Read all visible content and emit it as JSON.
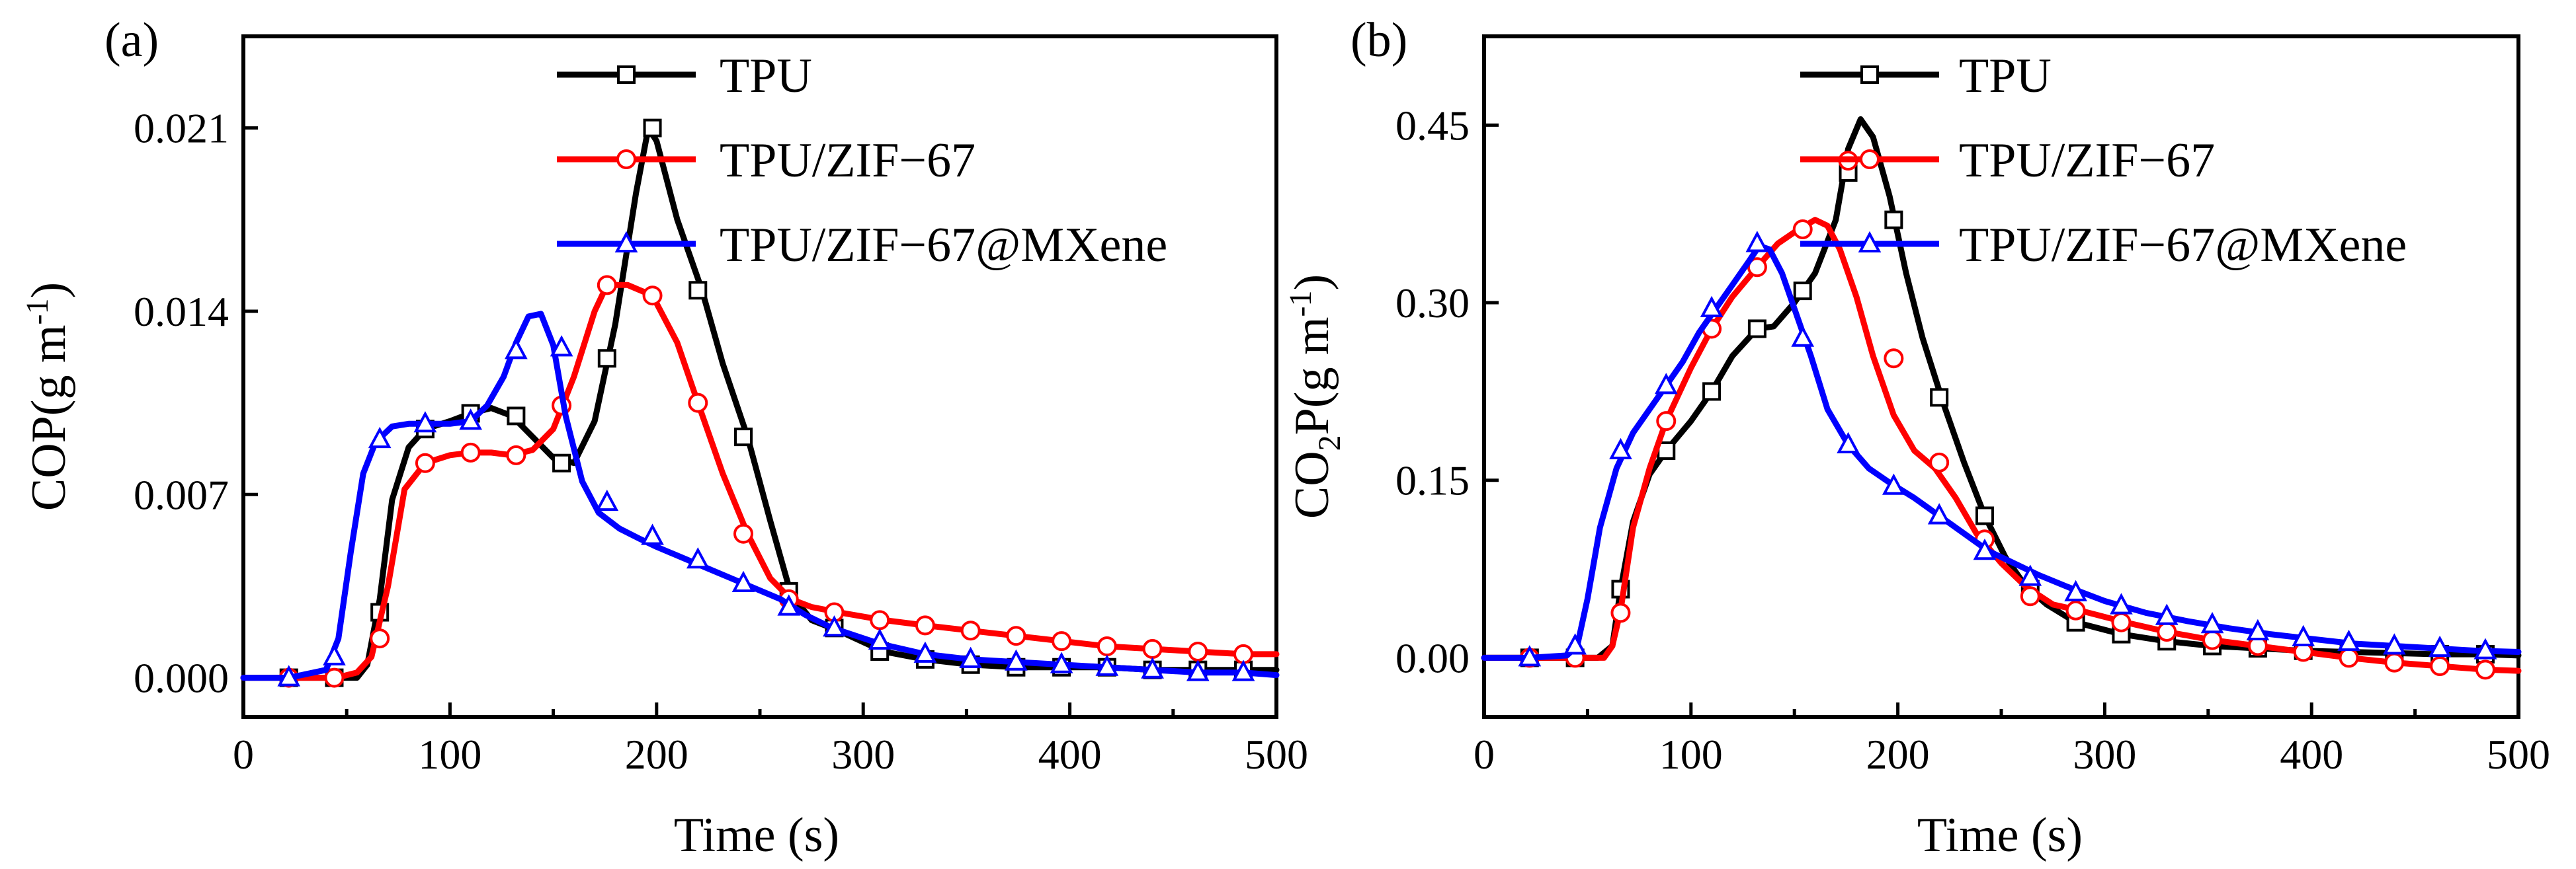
{
  "chart_data": [
    {
      "type": "line",
      "panel_label": "(a)",
      "title": "",
      "xlabel": "Time (s)",
      "ylabel": "COP(g m-1)",
      "ylabel_parts": {
        "base": "COP(g m",
        "sup": "-1",
        "tail": ")"
      },
      "xlim": [
        0,
        500
      ],
      "ylim": [
        -0.0015,
        0.0245
      ],
      "xticks": [
        "0",
        "100",
        "200",
        "300",
        "400",
        "500"
      ],
      "yticks": [
        "0.000",
        "0.007",
        "0.014",
        "0.021"
      ],
      "ytick_values": [
        0.0,
        0.007,
        0.014,
        0.021
      ],
      "grid": false,
      "legend_position": "top-right",
      "series": [
        {
          "name": "TPU",
          "color": "#000000",
          "marker": "square",
          "x": [
            0,
            22,
            45,
            55,
            60,
            66,
            72,
            80,
            88,
            100,
            110,
            120,
            130,
            140,
            150,
            160,
            170,
            180,
            190,
            196,
            200,
            210,
            222,
            232,
            244,
            255,
            265,
            275,
            288,
            310,
            330,
            352,
            374,
            396,
            418,
            440,
            462,
            484,
            500
          ],
          "y": [
            0.0,
            0.0,
            0.0,
            0.0,
            0.0005,
            0.003,
            0.0068,
            0.0088,
            0.0095,
            0.0098,
            0.0101,
            0.0103,
            0.01,
            0.0092,
            0.0084,
            0.0082,
            0.0098,
            0.0135,
            0.0185,
            0.021,
            0.0205,
            0.0175,
            0.0148,
            0.012,
            0.0092,
            0.006,
            0.0032,
            0.0022,
            0.0018,
            0.001,
            0.0007,
            0.0005,
            0.0004,
            0.0004,
            0.0004,
            0.0003,
            0.0003,
            0.0003,
            0.0003
          ],
          "markers_x": [
            22,
            44,
            66,
            88,
            110,
            132,
            154,
            176,
            198,
            220,
            242,
            264,
            286,
            308,
            330,
            352,
            374,
            396,
            418,
            440,
            462,
            484
          ],
          "markers_y": [
            0.0,
            0.0,
            0.0025,
            0.0095,
            0.0101,
            0.01,
            0.0082,
            0.0122,
            0.021,
            0.0148,
            0.0092,
            0.0033,
            0.0019,
            0.001,
            0.0007,
            0.0005,
            0.0004,
            0.0004,
            0.0004,
            0.0003,
            0.0003,
            0.0003
          ]
        },
        {
          "name": "TPU/ZIF−67",
          "color": "#ff0000",
          "marker": "circle",
          "x": [
            0,
            22,
            45,
            55,
            62,
            70,
            78,
            88,
            100,
            110,
            120,
            130,
            140,
            150,
            160,
            170,
            176,
            186,
            198,
            210,
            220,
            232,
            244,
            255,
            265,
            275,
            288,
            310,
            330,
            352,
            374,
            396,
            418,
            440,
            462,
            484,
            500
          ],
          "y": [
            0.0,
            0.0,
            0.0,
            0.0002,
            0.0008,
            0.0035,
            0.0072,
            0.0082,
            0.0085,
            0.0086,
            0.0086,
            0.0085,
            0.0087,
            0.0095,
            0.0115,
            0.014,
            0.015,
            0.015,
            0.0146,
            0.0128,
            0.0105,
            0.0078,
            0.0055,
            0.0038,
            0.003,
            0.0027,
            0.0025,
            0.0022,
            0.002,
            0.0018,
            0.0016,
            0.0014,
            0.0012,
            0.0011,
            0.001,
            0.0009,
            0.0009
          ],
          "markers_x": [
            22,
            44,
            66,
            88,
            110,
            132,
            154,
            176,
            198,
            220,
            242,
            264,
            286,
            308,
            330,
            352,
            374,
            396,
            418,
            440,
            462,
            484
          ],
          "markers_y": [
            0.0,
            0.0,
            0.0015,
            0.0082,
            0.0086,
            0.0085,
            0.0104,
            0.015,
            0.0146,
            0.0105,
            0.0055,
            0.003,
            0.0025,
            0.0022,
            0.002,
            0.0018,
            0.0016,
            0.0014,
            0.0012,
            0.0011,
            0.001,
            0.0009
          ]
        },
        {
          "name": "TPU/ZIF−67@MXene",
          "color": "#0000ff",
          "marker": "triangle",
          "x": [
            0,
            22,
            40,
            46,
            52,
            58,
            64,
            72,
            80,
            90,
            100,
            110,
            118,
            126,
            132,
            138,
            144,
            150,
            156,
            164,
            172,
            182,
            192,
            200,
            212,
            224,
            236,
            248,
            260,
            272,
            285,
            308,
            330,
            352,
            374,
            396,
            418,
            440,
            462,
            484,
            500
          ],
          "y": [
            0.0,
            0.0,
            0.0003,
            0.0015,
            0.0048,
            0.0078,
            0.009,
            0.0096,
            0.0097,
            0.0097,
            0.0097,
            0.0098,
            0.0104,
            0.0115,
            0.0128,
            0.0138,
            0.0139,
            0.0127,
            0.01,
            0.0075,
            0.0063,
            0.0057,
            0.0053,
            0.005,
            0.0046,
            0.0042,
            0.0038,
            0.0034,
            0.003,
            0.0024,
            0.0019,
            0.0013,
            0.0009,
            0.0007,
            0.0006,
            0.0005,
            0.0004,
            0.0003,
            0.0002,
            0.0002,
            0.0001
          ],
          "markers_x": [
            22,
            44,
            66,
            88,
            110,
            132,
            154,
            176,
            198,
            220,
            242,
            264,
            286,
            308,
            330,
            352,
            374,
            396,
            418,
            440,
            462,
            484
          ],
          "markers_y": [
            0.0,
            0.0008,
            0.0091,
            0.0097,
            0.0098,
            0.0125,
            0.0126,
            0.0067,
            0.0054,
            0.0045,
            0.0036,
            0.0027,
            0.0019,
            0.0014,
            0.0009,
            0.0007,
            0.0006,
            0.0005,
            0.0004,
            0.0003,
            0.0002,
            0.0002
          ]
        }
      ]
    },
    {
      "type": "line",
      "panel_label": "(b)",
      "title": "",
      "xlabel": "Time (s)",
      "ylabel": "CO2P(g m-1)",
      "ylabel_parts": {
        "base": "CO",
        "sub": "2",
        "mid": "P(g m",
        "sup": "-1",
        "tail": ")"
      },
      "xlim": [
        0,
        500
      ],
      "ylim": [
        -0.05,
        0.525
      ],
      "xticks": [
        "0",
        "100",
        "200",
        "300",
        "400",
        "500"
      ],
      "yticks": [
        "0.00",
        "0.15",
        "0.30",
        "0.45"
      ],
      "ytick_values": [
        0.0,
        0.15,
        0.3,
        0.45
      ],
      "grid": false,
      "legend_position": "top-right",
      "series": [
        {
          "name": "TPU",
          "color": "#000000",
          "marker": "square",
          "x": [
            0,
            22,
            45,
            55,
            62,
            66,
            72,
            80,
            88,
            100,
            110,
            120,
            132,
            140,
            150,
            160,
            170,
            176,
            182,
            188,
            196,
            204,
            212,
            222,
            232,
            242,
            252,
            262,
            272,
            286,
            308,
            330,
            352,
            374,
            396,
            418,
            440,
            462,
            484,
            500
          ],
          "y": [
            0.0,
            0.0,
            0.0,
            0.0,
            0.01,
            0.058,
            0.115,
            0.155,
            0.175,
            0.2,
            0.225,
            0.255,
            0.278,
            0.28,
            0.3,
            0.325,
            0.37,
            0.43,
            0.455,
            0.44,
            0.39,
            0.325,
            0.27,
            0.215,
            0.165,
            0.12,
            0.085,
            0.06,
            0.045,
            0.03,
            0.02,
            0.014,
            0.01,
            0.008,
            0.006,
            0.005,
            0.004,
            0.003,
            0.003,
            0.002
          ],
          "markers_x": [
            22,
            44,
            66,
            88,
            110,
            132,
            154,
            176,
            198,
            220,
            242,
            264,
            286,
            308,
            330,
            352,
            374,
            396,
            418,
            440,
            462,
            484
          ],
          "markers_y": [
            0.0,
            0.0,
            0.058,
            0.175,
            0.225,
            0.278,
            0.31,
            0.41,
            0.37,
            0.22,
            0.12,
            0.058,
            0.03,
            0.02,
            0.014,
            0.01,
            0.008,
            0.006,
            0.005,
            0.004,
            0.003,
            0.003
          ]
        },
        {
          "name": "TPU/ZIF−67",
          "color": "#ff0000",
          "marker": "circle",
          "x": [
            0,
            22,
            45,
            58,
            62,
            66,
            72,
            80,
            88,
            100,
            110,
            120,
            132,
            142,
            152,
            160,
            166,
            172,
            180,
            188,
            198,
            208,
            218,
            228,
            238,
            250,
            262,
            275,
            288,
            310,
            330,
            352,
            374,
            396,
            418,
            440,
            462,
            484,
            500
          ],
          "y": [
            0.0,
            0.0,
            0.0,
            0.0,
            0.01,
            0.04,
            0.11,
            0.16,
            0.2,
            0.245,
            0.278,
            0.305,
            0.33,
            0.35,
            0.362,
            0.37,
            0.365,
            0.345,
            0.305,
            0.255,
            0.205,
            0.175,
            0.16,
            0.135,
            0.105,
            0.08,
            0.06,
            0.045,
            0.04,
            0.03,
            0.022,
            0.015,
            0.01,
            0.005,
            0.0,
            -0.004,
            -0.007,
            -0.01,
            -0.011
          ],
          "markers_x": [
            22,
            44,
            66,
            88,
            110,
            132,
            154,
            176,
            198,
            220,
            242,
            264,
            286,
            308,
            330,
            352,
            374,
            396,
            418,
            440,
            462,
            484
          ],
          "markers_y": [
            0.0,
            0.0,
            0.038,
            0.2,
            0.278,
            0.33,
            0.362,
            0.42,
            0.253,
            0.165,
            0.1,
            0.052,
            0.04,
            0.03,
            0.022,
            0.015,
            0.01,
            0.005,
            0.0,
            -0.004,
            -0.007,
            -0.01
          ]
        },
        {
          "name": "TPU/ZIF−67@MXene",
          "color": "#0000ff",
          "marker": "triangle",
          "x": [
            0,
            22,
            40,
            45,
            50,
            56,
            64,
            72,
            80,
            88,
            96,
            104,
            112,
            120,
            128,
            133,
            138,
            144,
            150,
            158,
            166,
            176,
            186,
            196,
            208,
            220,
            232,
            244,
            256,
            268,
            282,
            300,
            320,
            340,
            360,
            380,
            400,
            420,
            440,
            460,
            480,
            500
          ],
          "y": [
            0.0,
            0.0,
            0.002,
            0.01,
            0.05,
            0.11,
            0.16,
            0.19,
            0.21,
            0.23,
            0.25,
            0.275,
            0.295,
            0.315,
            0.335,
            0.348,
            0.345,
            0.325,
            0.295,
            0.255,
            0.21,
            0.18,
            0.16,
            0.148,
            0.135,
            0.12,
            0.105,
            0.09,
            0.08,
            0.07,
            0.06,
            0.048,
            0.038,
            0.031,
            0.025,
            0.02,
            0.016,
            0.012,
            0.01,
            0.008,
            0.006,
            0.005
          ],
          "markers_x": [
            22,
            44,
            66,
            88,
            110,
            132,
            154,
            176,
            198,
            220,
            242,
            264,
            286,
            308,
            330,
            352,
            374,
            396,
            418,
            440,
            462,
            484
          ],
          "markers_y": [
            0.0,
            0.01,
            0.175,
            0.23,
            0.295,
            0.35,
            0.27,
            0.18,
            0.145,
            0.12,
            0.09,
            0.068,
            0.055,
            0.044,
            0.035,
            0.028,
            0.022,
            0.017,
            0.013,
            0.01,
            0.008,
            0.006
          ]
        }
      ]
    }
  ]
}
